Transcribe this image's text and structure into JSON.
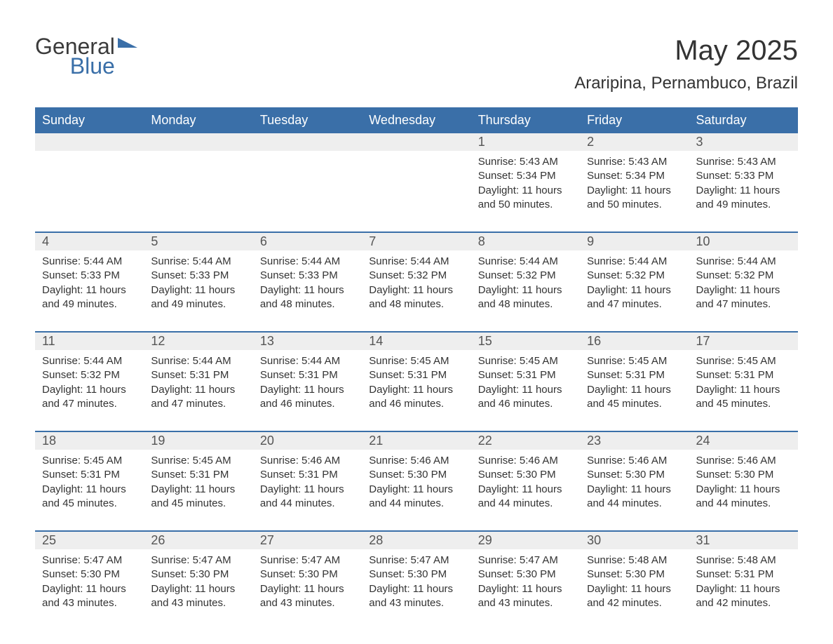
{
  "logo": {
    "line1": "General",
    "line2": "Blue"
  },
  "title": "May 2025",
  "location": "Araripina, Pernambuco, Brazil",
  "colors": {
    "brand_blue": "#3a6fa8",
    "header_text": "#ffffff",
    "daynum_bg": "#eeeeee",
    "body_text": "#333333",
    "background": "#ffffff"
  },
  "typography": {
    "title_fontsize": 40,
    "location_fontsize": 24,
    "weekday_fontsize": 18,
    "daynum_fontsize": 18,
    "cell_fontsize": 15,
    "font_family": "Arial"
  },
  "weekdays": [
    "Sunday",
    "Monday",
    "Tuesday",
    "Wednesday",
    "Thursday",
    "Friday",
    "Saturday"
  ],
  "weeks": [
    [
      null,
      null,
      null,
      null,
      {
        "num": "1",
        "sunrise": "Sunrise: 5:43 AM",
        "sunset": "Sunset: 5:34 PM",
        "daylight": "Daylight: 11 hours and 50 minutes."
      },
      {
        "num": "2",
        "sunrise": "Sunrise: 5:43 AM",
        "sunset": "Sunset: 5:34 PM",
        "daylight": "Daylight: 11 hours and 50 minutes."
      },
      {
        "num": "3",
        "sunrise": "Sunrise: 5:43 AM",
        "sunset": "Sunset: 5:33 PM",
        "daylight": "Daylight: 11 hours and 49 minutes."
      }
    ],
    [
      {
        "num": "4",
        "sunrise": "Sunrise: 5:44 AM",
        "sunset": "Sunset: 5:33 PM",
        "daylight": "Daylight: 11 hours and 49 minutes."
      },
      {
        "num": "5",
        "sunrise": "Sunrise: 5:44 AM",
        "sunset": "Sunset: 5:33 PM",
        "daylight": "Daylight: 11 hours and 49 minutes."
      },
      {
        "num": "6",
        "sunrise": "Sunrise: 5:44 AM",
        "sunset": "Sunset: 5:33 PM",
        "daylight": "Daylight: 11 hours and 48 minutes."
      },
      {
        "num": "7",
        "sunrise": "Sunrise: 5:44 AM",
        "sunset": "Sunset: 5:32 PM",
        "daylight": "Daylight: 11 hours and 48 minutes."
      },
      {
        "num": "8",
        "sunrise": "Sunrise: 5:44 AM",
        "sunset": "Sunset: 5:32 PM",
        "daylight": "Daylight: 11 hours and 48 minutes."
      },
      {
        "num": "9",
        "sunrise": "Sunrise: 5:44 AM",
        "sunset": "Sunset: 5:32 PM",
        "daylight": "Daylight: 11 hours and 47 minutes."
      },
      {
        "num": "10",
        "sunrise": "Sunrise: 5:44 AM",
        "sunset": "Sunset: 5:32 PM",
        "daylight": "Daylight: 11 hours and 47 minutes."
      }
    ],
    [
      {
        "num": "11",
        "sunrise": "Sunrise: 5:44 AM",
        "sunset": "Sunset: 5:32 PM",
        "daylight": "Daylight: 11 hours and 47 minutes."
      },
      {
        "num": "12",
        "sunrise": "Sunrise: 5:44 AM",
        "sunset": "Sunset: 5:31 PM",
        "daylight": "Daylight: 11 hours and 47 minutes."
      },
      {
        "num": "13",
        "sunrise": "Sunrise: 5:44 AM",
        "sunset": "Sunset: 5:31 PM",
        "daylight": "Daylight: 11 hours and 46 minutes."
      },
      {
        "num": "14",
        "sunrise": "Sunrise: 5:45 AM",
        "sunset": "Sunset: 5:31 PM",
        "daylight": "Daylight: 11 hours and 46 minutes."
      },
      {
        "num": "15",
        "sunrise": "Sunrise: 5:45 AM",
        "sunset": "Sunset: 5:31 PM",
        "daylight": "Daylight: 11 hours and 46 minutes."
      },
      {
        "num": "16",
        "sunrise": "Sunrise: 5:45 AM",
        "sunset": "Sunset: 5:31 PM",
        "daylight": "Daylight: 11 hours and 45 minutes."
      },
      {
        "num": "17",
        "sunrise": "Sunrise: 5:45 AM",
        "sunset": "Sunset: 5:31 PM",
        "daylight": "Daylight: 11 hours and 45 minutes."
      }
    ],
    [
      {
        "num": "18",
        "sunrise": "Sunrise: 5:45 AM",
        "sunset": "Sunset: 5:31 PM",
        "daylight": "Daylight: 11 hours and 45 minutes."
      },
      {
        "num": "19",
        "sunrise": "Sunrise: 5:45 AM",
        "sunset": "Sunset: 5:31 PM",
        "daylight": "Daylight: 11 hours and 45 minutes."
      },
      {
        "num": "20",
        "sunrise": "Sunrise: 5:46 AM",
        "sunset": "Sunset: 5:31 PM",
        "daylight": "Daylight: 11 hours and 44 minutes."
      },
      {
        "num": "21",
        "sunrise": "Sunrise: 5:46 AM",
        "sunset": "Sunset: 5:30 PM",
        "daylight": "Daylight: 11 hours and 44 minutes."
      },
      {
        "num": "22",
        "sunrise": "Sunrise: 5:46 AM",
        "sunset": "Sunset: 5:30 PM",
        "daylight": "Daylight: 11 hours and 44 minutes."
      },
      {
        "num": "23",
        "sunrise": "Sunrise: 5:46 AM",
        "sunset": "Sunset: 5:30 PM",
        "daylight": "Daylight: 11 hours and 44 minutes."
      },
      {
        "num": "24",
        "sunrise": "Sunrise: 5:46 AM",
        "sunset": "Sunset: 5:30 PM",
        "daylight": "Daylight: 11 hours and 44 minutes."
      }
    ],
    [
      {
        "num": "25",
        "sunrise": "Sunrise: 5:47 AM",
        "sunset": "Sunset: 5:30 PM",
        "daylight": "Daylight: 11 hours and 43 minutes."
      },
      {
        "num": "26",
        "sunrise": "Sunrise: 5:47 AM",
        "sunset": "Sunset: 5:30 PM",
        "daylight": "Daylight: 11 hours and 43 minutes."
      },
      {
        "num": "27",
        "sunrise": "Sunrise: 5:47 AM",
        "sunset": "Sunset: 5:30 PM",
        "daylight": "Daylight: 11 hours and 43 minutes."
      },
      {
        "num": "28",
        "sunrise": "Sunrise: 5:47 AM",
        "sunset": "Sunset: 5:30 PM",
        "daylight": "Daylight: 11 hours and 43 minutes."
      },
      {
        "num": "29",
        "sunrise": "Sunrise: 5:47 AM",
        "sunset": "Sunset: 5:30 PM",
        "daylight": "Daylight: 11 hours and 43 minutes."
      },
      {
        "num": "30",
        "sunrise": "Sunrise: 5:48 AM",
        "sunset": "Sunset: 5:30 PM",
        "daylight": "Daylight: 11 hours and 42 minutes."
      },
      {
        "num": "31",
        "sunrise": "Sunrise: 5:48 AM",
        "sunset": "Sunset: 5:31 PM",
        "daylight": "Daylight: 11 hours and 42 minutes."
      }
    ]
  ]
}
